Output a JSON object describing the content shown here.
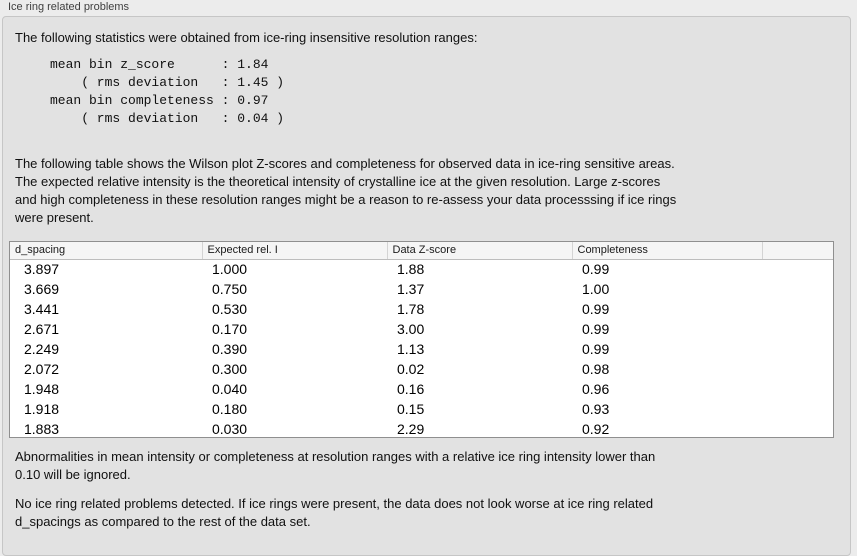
{
  "group": {
    "title": "Ice ring related problems"
  },
  "intro": "The following statistics were obtained from ice-ring insensitive resolution ranges:",
  "stats_block": {
    "lines": [
      "mean bin z_score      : 1.84",
      "    ( rms deviation   : 1.45 )",
      "mean bin completeness : 0.97",
      "    ( rms deviation   : 0.04 )"
    ]
  },
  "wilson_paragraph": {
    "lines": [
      "The following table shows the Wilson plot Z-scores and completeness for observed data in ice-ring sensitive areas.",
      "The expected relative intensity is the theoretical intensity of crystalline ice at the given resolution. Large z-scores",
      "and high completeness in these resolution ranges might be a reason to re-assess your data processsing if ice rings",
      "were present."
    ]
  },
  "table": {
    "columns": [
      "d_spacing",
      "Expected rel. I",
      "Data Z-score",
      "Completeness",
      ""
    ],
    "rows": [
      [
        "3.897",
        "1.000",
        "1.88",
        "0.99"
      ],
      [
        "3.669",
        "0.750",
        "1.37",
        "1.00"
      ],
      [
        "3.441",
        "0.530",
        "1.78",
        "0.99"
      ],
      [
        "2.671",
        "0.170",
        "3.00",
        "0.99"
      ],
      [
        "2.249",
        "0.390",
        "1.13",
        "0.99"
      ],
      [
        "2.072",
        "0.300",
        "0.02",
        "0.98"
      ],
      [
        "1.948",
        "0.040",
        "0.16",
        "0.96"
      ],
      [
        "1.918",
        "0.180",
        "0.15",
        "0.93"
      ],
      [
        "1.883",
        "0.030",
        "2.29",
        "0.92"
      ]
    ]
  },
  "abnormalities_paragraph": {
    "lines": [
      "Abnormalities in mean intensity or completeness at resolution ranges with a relative ice ring intensity lower than",
      "0.10 will be ignored."
    ]
  },
  "conclusion_paragraph": {
    "lines": [
      "No ice ring related problems detected. If ice rings were present, the data does not look worse at ice ring related",
      "d_spacings as compared to the rest of the data set."
    ]
  }
}
